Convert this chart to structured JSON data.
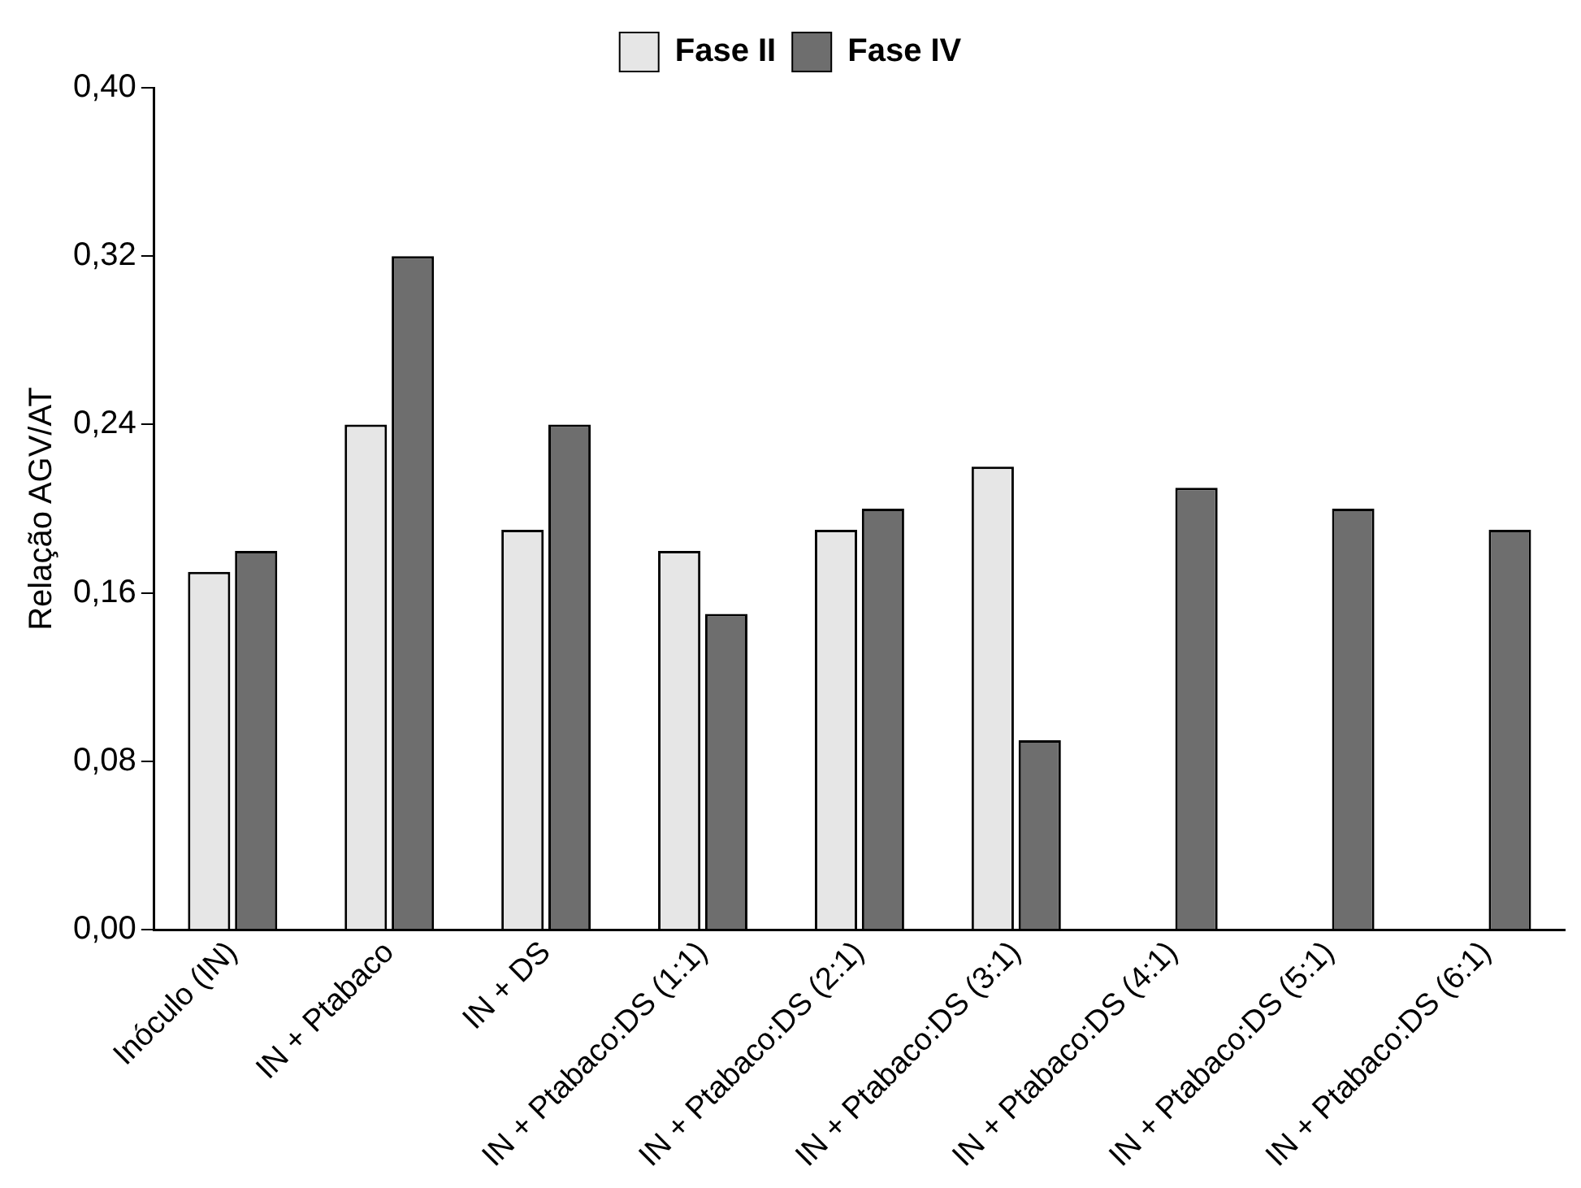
{
  "chart_data": {
    "type": "bar",
    "ylabel": "Relação AGV/AT",
    "categories": [
      "Inóculo (IN)",
      "IN + Ptabaco",
      "IN + DS",
      "IN + Ptabaco:DS (1:1)",
      "IN + Ptabaco:DS (2:1)",
      "IN + Ptabaco:DS (3:1)",
      "IN + Ptabaco:DS (4:1)",
      "IN + Ptabaco:DS (5:1)",
      "IN + Ptabaco:DS (6:1)"
    ],
    "series": [
      {
        "name": "Fase II",
        "color": "#e6e6e6",
        "values": [
          0.17,
          0.24,
          0.19,
          0.18,
          0.19,
          0.22,
          null,
          null,
          null
        ]
      },
      {
        "name": "Fase IV",
        "color": "#6e6e6e",
        "values": [
          0.18,
          0.32,
          0.24,
          0.15,
          0.2,
          0.09,
          0.21,
          0.2,
          0.19
        ]
      }
    ],
    "ylim": [
      0,
      0.4
    ],
    "yticks": [
      {
        "value": 0,
        "label": "0,00"
      },
      {
        "value": 0.08,
        "label": "0,08"
      },
      {
        "value": 0.16,
        "label": "0,16"
      },
      {
        "value": 0.24,
        "label": "0,24"
      },
      {
        "value": 0.32,
        "label": "0,32"
      },
      {
        "value": 0.4,
        "label": "0,40"
      }
    ],
    "grid": false,
    "legend": "top"
  }
}
